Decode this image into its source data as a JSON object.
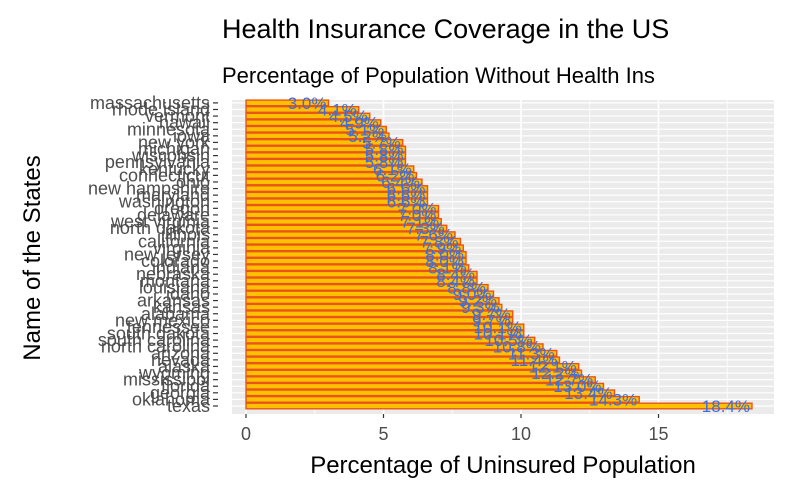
{
  "chart_data": {
    "type": "bar",
    "orientation": "horizontal",
    "title": "Health Insurance Coverage in the US",
    "subtitle": "Percentage of Population Without Health Ins",
    "xlabel": "Percentage of Uninsured Population",
    "ylabel": "Name of the States",
    "xlim": [
      0,
      18.4
    ],
    "x_ticks": [
      0,
      5,
      10,
      15
    ],
    "grid": true,
    "colors": {
      "bar_fill": "#FFC000",
      "bar_outline": "#E8551A",
      "label": "#3B6FE0",
      "panel": "#EBEBEB",
      "grid": "#FFFFFF"
    },
    "categories": [
      "massachusetts",
      "rhode island",
      "vermont",
      "hawaii",
      "minnesota",
      "iowa",
      "new york",
      "michigan",
      "wisconsin",
      "pennsylvania",
      "kentucky",
      "connecticut",
      "ohio",
      "new hampshire",
      "maryland",
      "washington",
      "oregon",
      "delaware",
      "west virginia",
      "north dakota",
      "illinois",
      "california",
      "virginia",
      "new jersey",
      "colorado",
      "indiana",
      "nebraska",
      "montana",
      "louisiana",
      "idaho",
      "arkansas",
      "kansas",
      "alabama",
      "new mexico",
      "tennessee",
      "south dakota",
      "south carolina",
      "north carolina",
      "arizona",
      "nevada",
      "alaska",
      "wyoming",
      "mississippi",
      "florida",
      "georgia",
      "oklahoma",
      "texas"
    ],
    "values": [
      3.0,
      4.1,
      4.5,
      4.9,
      5.1,
      5.2,
      5.7,
      5.8,
      5.8,
      5.8,
      6.1,
      6.2,
      6.4,
      6.6,
      6.6,
      6.6,
      7.0,
      7.0,
      7.1,
      7.3,
      7.6,
      7.8,
      7.9,
      8.0,
      8.0,
      8.1,
      8.4,
      8.4,
      8.8,
      9.0,
      9.2,
      9.3,
      9.7,
      9.7,
      10.1,
      10.1,
      10.5,
      10.8,
      11.3,
      11.4,
      12.1,
      12.2,
      12.7,
      13.0,
      13.4,
      14.3,
      18.4
    ],
    "value_labels": [
      "3.0%",
      "4.1%",
      "4.5%",
      "4.9%",
      "5.1%",
      "5.2%",
      "5.7%",
      "5.8%",
      "5.8%",
      "5.8%",
      "6.1%",
      "6.2%",
      "6.4%",
      "6.6%",
      "6.6%",
      "6.6%",
      "7.0%",
      "7.0%",
      "7.1%",
      "7.3%",
      "7.6%",
      "7.8%",
      "7.9%",
      "8.0%",
      "8.0%",
      "8.1%",
      "8.4%",
      "8.4%",
      "8.8%",
      "9.0%",
      "9.2%",
      "9.3%",
      "9.7%",
      "9.7%",
      "10.1%",
      "10.1%",
      "10.5%",
      "10.8%",
      "11.3%",
      "11.4%",
      "12.1%",
      "12.2%",
      "12.7%",
      "13.0%",
      "13.4%",
      "14.3%",
      "18.4%"
    ]
  }
}
